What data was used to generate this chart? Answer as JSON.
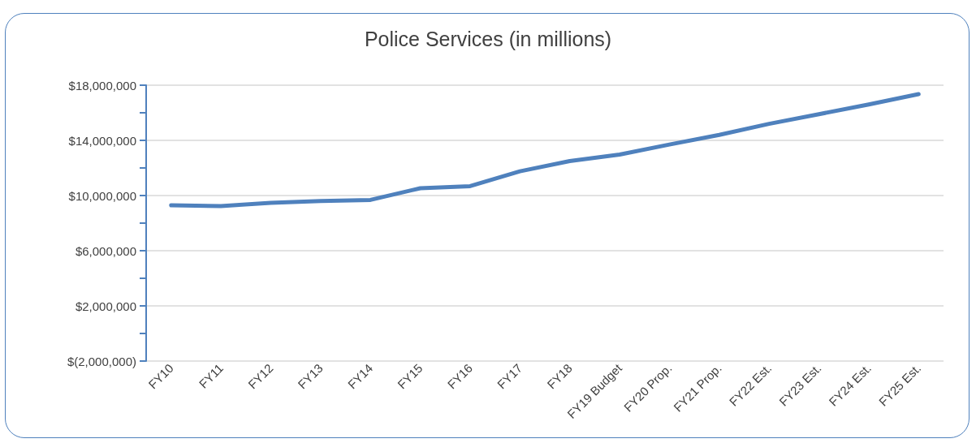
{
  "chart_data": {
    "type": "line",
    "title": "Police Services (in millions)",
    "categories": [
      "FY10",
      "FY11",
      "FY12",
      "FY13",
      "FY14",
      "FY15",
      "FY16",
      "FY17",
      "FY18",
      "FY19 Budget",
      "FY20 Prop.",
      "FY21 Prop.",
      "FY22 Est.",
      "FY23 Est.",
      "FY24 Est.",
      "FY25 Est."
    ],
    "series": [
      {
        "color": "#4f81bd",
        "values": [
          9290000,
          9240000,
          9470000,
          9600000,
          9680000,
          10530000,
          10680000,
          11760000,
          12500000,
          12970000,
          13700000,
          14400000,
          15200000,
          15900000,
          16600000,
          17350000
        ]
      }
    ],
    "ylim": [
      -2000000,
      18000000
    ],
    "yticks": [
      {
        "value": -2000000,
        "label": "$(2,000,000)"
      },
      {
        "value": 0,
        "label": null
      },
      {
        "value": 2000000,
        "label": "$2,000,000"
      },
      {
        "value": 4000000,
        "label": null
      },
      {
        "value": 6000000,
        "label": "$6,000,000"
      },
      {
        "value": 8000000,
        "label": null
      },
      {
        "value": 10000000,
        "label": "$10,000,000"
      },
      {
        "value": 12000000,
        "label": null
      },
      {
        "value": 14000000,
        "label": "$14,000,000"
      },
      {
        "value": 16000000,
        "label": null
      },
      {
        "value": 18000000,
        "label": "$18,000,000"
      }
    ],
    "grid": "y",
    "marker": "none",
    "line_style": "solid"
  }
}
